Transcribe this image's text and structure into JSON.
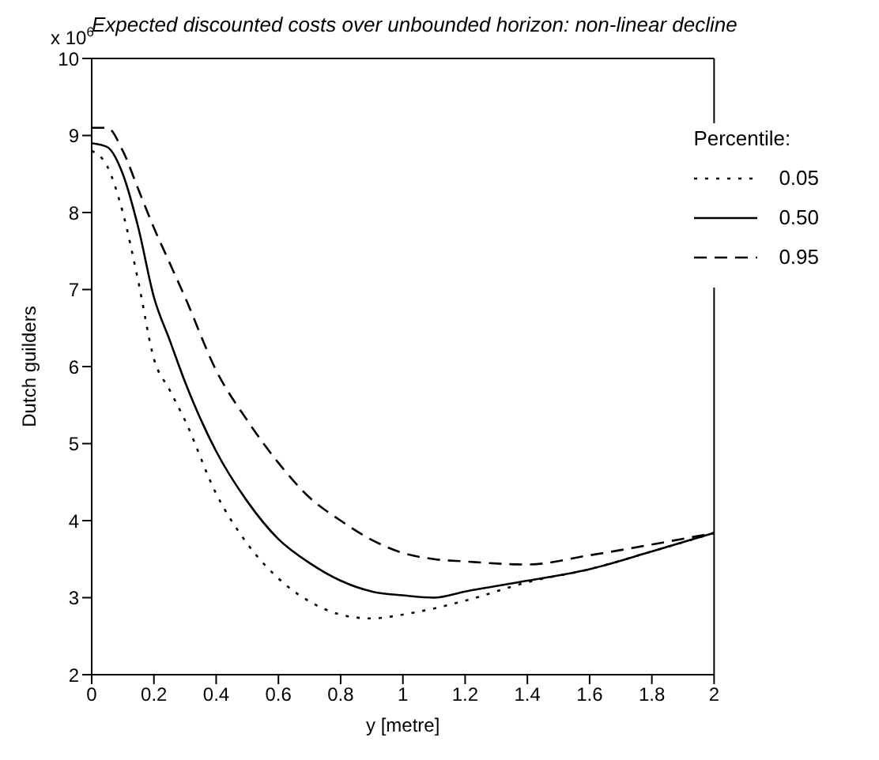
{
  "chart_data": {
    "type": "line",
    "title": "Expected discounted costs over unbounded horizon: non-linear decline",
    "xlabel": "y [metre]",
    "ylabel": "Dutch guilders",
    "annotations": [
      "x 10$^{6}$"
    ],
    "legend_title": "Percentile:",
    "legend": "top right",
    "grid": false,
    "marker": "none",
    "xlim": [
      0,
      2
    ],
    "xticks": [
      0,
      0.2,
      0.4,
      0.6,
      0.8,
      1,
      1.2,
      1.4,
      1.6,
      1.8,
      2
    ],
    "ylim": [
      2,
      10
    ],
    "yticks": [
      2,
      3,
      4,
      5,
      6,
      7,
      8,
      9,
      10
    ],
    "x": [
      0,
      0.05,
      0.1,
      0.15,
      0.2,
      0.25,
      0.3,
      0.4,
      0.5,
      0.6,
      0.7,
      0.8,
      0.9,
      1,
      1.1,
      1.2,
      1.4,
      1.6,
      1.8,
      2
    ],
    "series": [
      {
        "name": "0.05",
        "color": "#000000",
        "line_style": "dotted",
        "values": [
          8.8,
          8.6,
          8.0,
          7.1,
          6.1,
          5.7,
          5.3,
          4.35,
          3.7,
          3.25,
          2.95,
          2.78,
          2.73,
          2.78,
          2.86,
          2.96,
          3.2,
          3.37,
          3.6,
          3.84
        ]
      },
      {
        "name": "0.50",
        "color": "#000000",
        "line_style": "solid",
        "values": [
          8.9,
          8.85,
          8.5,
          7.8,
          6.9,
          6.35,
          5.8,
          4.9,
          4.25,
          3.76,
          3.45,
          3.22,
          3.08,
          3.03,
          3.0,
          3.08,
          3.22,
          3.37,
          3.6,
          3.84
        ]
      },
      {
        "name": "0.95",
        "color": "#000000",
        "line_style": "dashed",
        "values": [
          9.1,
          9.1,
          8.8,
          8.3,
          7.8,
          7.35,
          6.9,
          5.95,
          5.3,
          4.75,
          4.3,
          4.0,
          3.75,
          3.58,
          3.5,
          3.47,
          3.43,
          3.55,
          3.69,
          3.84
        ]
      }
    ]
  }
}
